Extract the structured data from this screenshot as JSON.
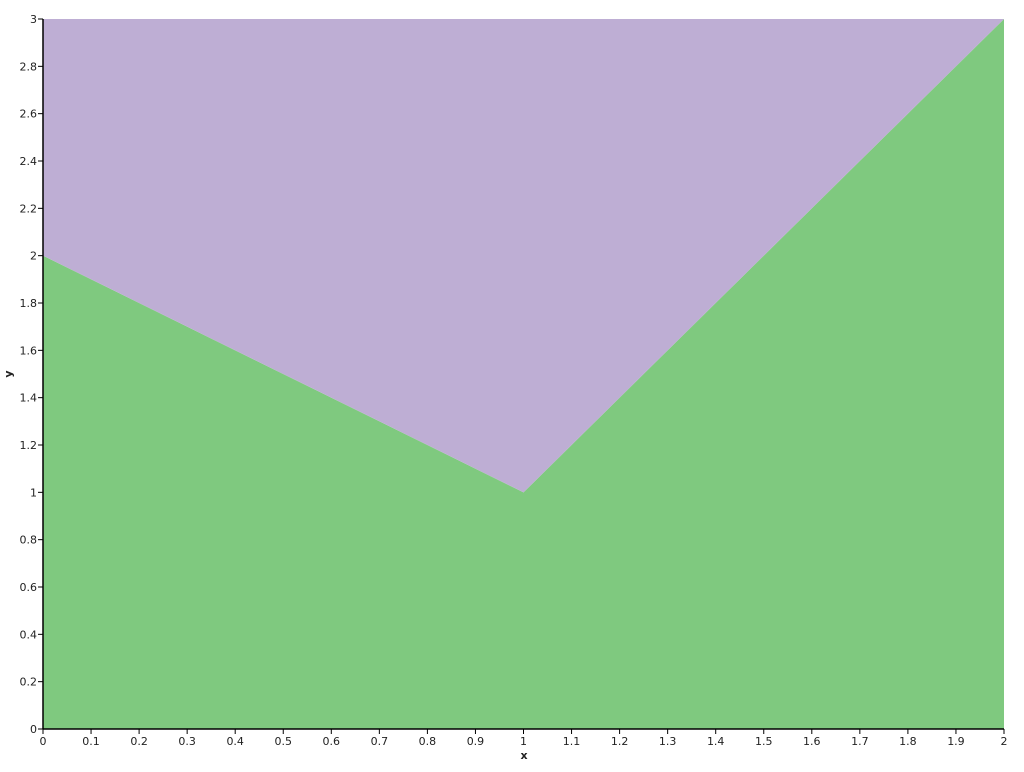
{
  "chart_data": {
    "type": "area",
    "stacked": true,
    "title": "",
    "xlabel": "x",
    "ylabel": "y",
    "x": [
      0,
      1,
      2
    ],
    "series": [
      {
        "values": [
          2,
          1,
          3
        ],
        "color": "#7fc97f"
      },
      {
        "values": [
          1,
          2,
          0
        ],
        "color": "#beaed4"
      }
    ],
    "xlim": [
      0,
      2
    ],
    "ylim": [
      0,
      3
    ],
    "xticks": [
      0,
      0.1,
      0.2,
      0.3,
      0.4,
      0.5,
      0.6,
      0.7,
      0.8,
      0.9,
      1,
      1.1,
      1.2,
      1.3,
      1.4,
      1.5,
      1.6,
      1.7,
      1.8,
      1.9,
      2
    ],
    "yticks": [
      0,
      0.2,
      0.4,
      0.6,
      0.8,
      1,
      1.2,
      1.4,
      1.6,
      1.8,
      2,
      2.2,
      2.4,
      2.6,
      2.8,
      3
    ],
    "grid": false,
    "legend": "none"
  }
}
